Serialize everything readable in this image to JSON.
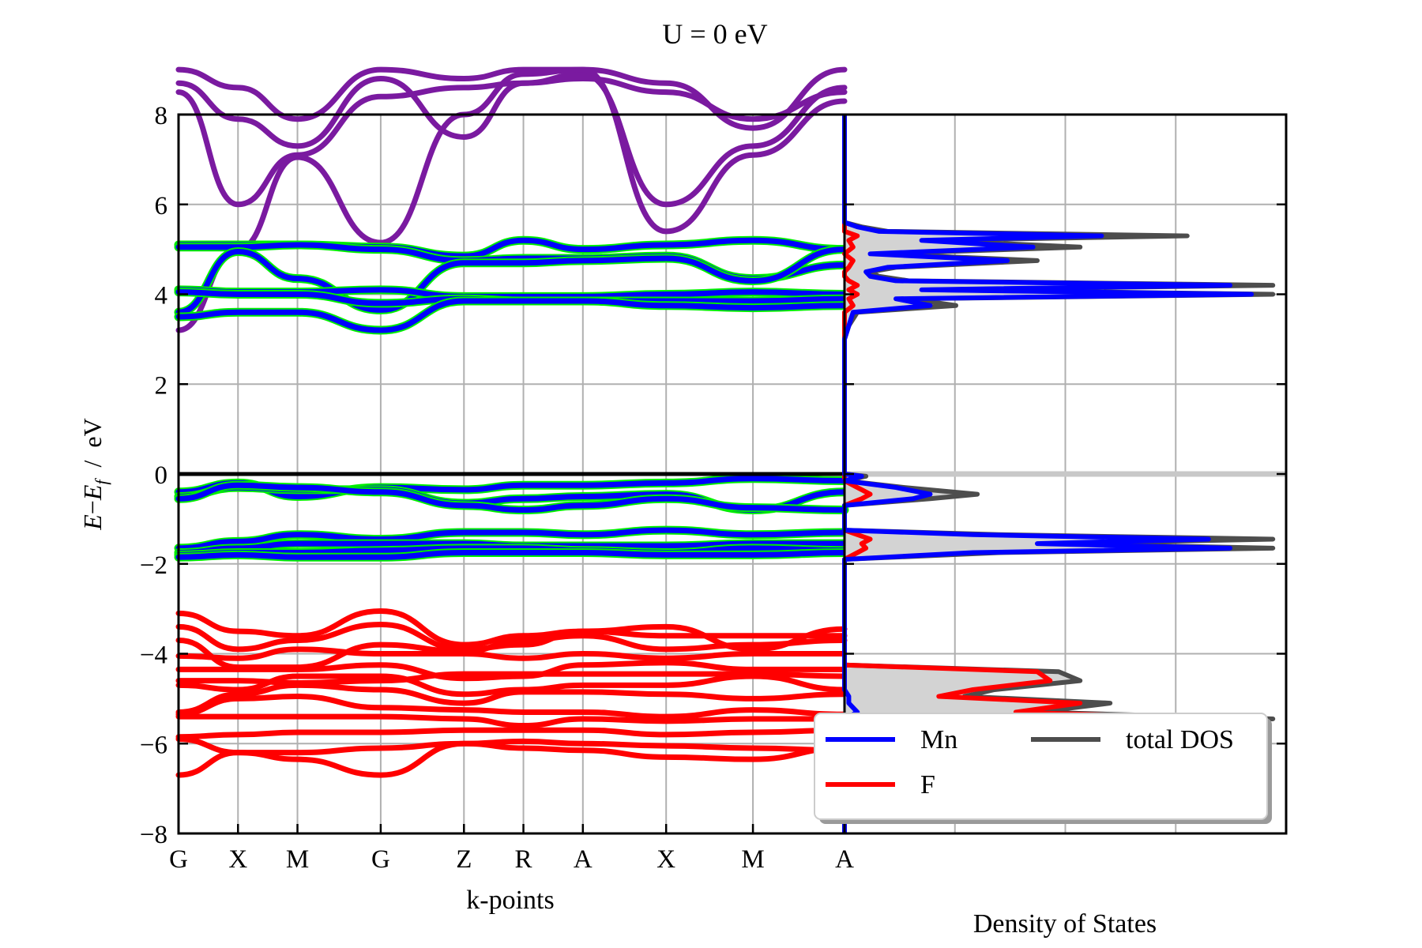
{
  "chart_data": {
    "type": "line",
    "title": "U = 0 eV",
    "ylabel_parts": [
      "E",
      "−",
      "E",
      "f",
      "  /  eV"
    ],
    "ylim": [
      -8,
      8
    ],
    "yticks": [
      8,
      6,
      4,
      2,
      0,
      -2,
      -4,
      -6,
      -8
    ],
    "ytick_labels": [
      "8",
      "6",
      "4",
      "2",
      "0",
      "−2",
      "−4",
      "−6",
      "−8"
    ],
    "band_xlabel": "k-points",
    "dos_xlabel": "Density of States",
    "kpoints": [
      {
        "label": "G",
        "pos": 0.0
      },
      {
        "label": "X",
        "pos": 0.5
      },
      {
        "label": "M",
        "pos": 1.0
      },
      {
        "label": "G",
        "pos": 1.7
      },
      {
        "label": "Z",
        "pos": 2.4
      },
      {
        "label": "R",
        "pos": 2.9
      },
      {
        "label": "A",
        "pos": 3.4
      },
      {
        "label": "X",
        "pos": 4.1
      },
      {
        "label": "M",
        "pos": 4.83
      },
      {
        "label": "A",
        "pos": 5.6
      }
    ],
    "fermi_level": 0,
    "colors": {
      "Mn": "#0000ff",
      "F": "#ff0000",
      "total": "#4d4d4d",
      "mix": "#00ee00",
      "upper": "#7a1aa0"
    },
    "bands": [
      {
        "group": "upper",
        "y": [
          8.5,
          6.0,
          7.1,
          8.4,
          8.6,
          8.7,
          8.8,
          8.5,
          7.9,
          8.5
        ]
      },
      {
        "group": "upper",
        "y": [
          8.7,
          7.9,
          7.3,
          8.8,
          7.5,
          8.7,
          8.9,
          6.0,
          7.3,
          8.6
        ]
      },
      {
        "group": "upper",
        "y": [
          9.0,
          8.6,
          7.9,
          9.0,
          8.8,
          9.0,
          9.0,
          5.4,
          7.1,
          8.3
        ]
      },
      {
        "group": "upper",
        "y": [
          3.2,
          5.0,
          7.05,
          5.15,
          8.0,
          8.9,
          9.0,
          8.7,
          7.7,
          9.0
        ]
      },
      {
        "group": "Mn",
        "y": [
          5.1,
          5.1,
          5.1,
          5.05,
          4.85,
          5.2,
          5.0,
          5.1,
          5.2,
          5.0
        ]
      },
      {
        "group": "Mn",
        "y": [
          5.05,
          5.05,
          5.1,
          5.0,
          4.75,
          4.8,
          4.8,
          4.85,
          4.35,
          4.65
        ]
      },
      {
        "group": "Mn",
        "y": [
          3.6,
          4.95,
          4.35,
          3.65,
          4.7,
          4.7,
          4.75,
          4.8,
          4.3,
          5.0
        ]
      },
      {
        "group": "Mn",
        "y": [
          4.1,
          4.05,
          4.05,
          4.1,
          3.95,
          3.95,
          3.95,
          4.0,
          4.05,
          4.0
        ]
      },
      {
        "group": "Mn",
        "y": [
          4.05,
          4.0,
          4.0,
          3.8,
          3.9,
          3.85,
          3.85,
          3.85,
          3.85,
          3.9
        ]
      },
      {
        "group": "Mn",
        "y": [
          3.5,
          3.6,
          3.6,
          3.2,
          3.85,
          3.85,
          3.85,
          3.75,
          3.7,
          3.75
        ]
      },
      {
        "group": "Mn",
        "y": [
          -0.4,
          -0.2,
          -0.5,
          -0.3,
          -0.35,
          -0.25,
          -0.25,
          -0.2,
          -0.1,
          -0.15
        ]
      },
      {
        "group": "Mn",
        "y": [
          -0.5,
          -0.3,
          -0.35,
          -0.35,
          -0.65,
          -0.55,
          -0.5,
          -0.45,
          -0.8,
          -0.4
        ]
      },
      {
        "group": "Mn",
        "y": [
          -0.55,
          -0.25,
          -0.3,
          -0.4,
          -0.7,
          -0.8,
          -0.7,
          -0.55,
          -0.75,
          -0.8
        ]
      },
      {
        "group": "Mn",
        "y": [
          -1.65,
          -1.5,
          -1.35,
          -1.45,
          -1.3,
          -1.3,
          -1.35,
          -1.25,
          -1.35,
          -1.3
        ]
      },
      {
        "group": "Mn",
        "y": [
          -1.75,
          -1.65,
          -1.55,
          -1.55,
          -1.55,
          -1.6,
          -1.6,
          -1.6,
          -1.55,
          -1.55
        ]
      },
      {
        "group": "Mn",
        "y": [
          -1.8,
          -1.75,
          -1.75,
          -1.7,
          -1.65,
          -1.65,
          -1.7,
          -1.75,
          -1.65,
          -1.7
        ]
      },
      {
        "group": "Mn",
        "y": [
          -1.85,
          -1.8,
          -1.85,
          -1.85,
          -1.75,
          -1.75,
          -1.75,
          -1.8,
          -1.8,
          -1.75
        ]
      },
      {
        "group": "F",
        "y": [
          -3.1,
          -3.5,
          -3.6,
          -3.05,
          -3.8,
          -3.6,
          -3.5,
          -3.4,
          -3.9,
          -3.45
        ]
      },
      {
        "group": "F",
        "y": [
          -3.4,
          -3.9,
          -3.7,
          -3.35,
          -3.9,
          -3.8,
          -3.5,
          -3.6,
          -3.6,
          -3.6
        ]
      },
      {
        "group": "F",
        "y": [
          -3.7,
          -4.3,
          -4.3,
          -3.8,
          -3.95,
          -3.7,
          -3.6,
          -3.9,
          -3.8,
          -3.7
        ]
      },
      {
        "group": "F",
        "y": [
          -4.05,
          -4.1,
          -3.9,
          -4.0,
          -4.0,
          -4.1,
          -4.0,
          -4.1,
          -4.0,
          -4.0
        ]
      },
      {
        "group": "F",
        "y": [
          -4.35,
          -4.35,
          -4.35,
          -4.25,
          -4.55,
          -4.5,
          -4.25,
          -4.2,
          -4.35,
          -4.35
        ]
      },
      {
        "group": "F",
        "y": [
          -4.6,
          -4.6,
          -4.65,
          -4.6,
          -4.45,
          -4.45,
          -4.45,
          -4.45,
          -4.45,
          -4.5
        ]
      },
      {
        "group": "F",
        "y": [
          -4.7,
          -4.8,
          -4.5,
          -4.5,
          -4.9,
          -4.8,
          -4.7,
          -4.7,
          -4.5,
          -4.8
        ]
      },
      {
        "group": "F",
        "y": [
          -5.3,
          -4.9,
          -4.7,
          -4.8,
          -5.1,
          -4.85,
          -4.85,
          -4.9,
          -5.0,
          -4.9
        ]
      },
      {
        "group": "F",
        "y": [
          -5.35,
          -5.0,
          -4.95,
          -5.2,
          -5.25,
          -5.3,
          -5.3,
          -5.4,
          -5.25,
          -5.35
        ]
      },
      {
        "group": "F",
        "y": [
          -5.4,
          -5.4,
          -5.4,
          -5.4,
          -5.45,
          -5.6,
          -5.45,
          -5.5,
          -5.45,
          -5.45
        ]
      },
      {
        "group": "F",
        "y": [
          -5.85,
          -5.8,
          -5.75,
          -5.75,
          -5.7,
          -5.7,
          -5.7,
          -5.8,
          -5.75,
          -5.7
        ]
      },
      {
        "group": "F",
        "y": [
          -5.9,
          -6.2,
          -6.2,
          -6.1,
          -6.0,
          -5.95,
          -6.0,
          -6.05,
          -6.1,
          -6.15
        ]
      },
      {
        "group": "F",
        "y": [
          -6.7,
          -6.2,
          -6.35,
          -6.7,
          -6.0,
          -6.1,
          -6.15,
          -6.3,
          -6.35,
          -6.1
        ]
      }
    ],
    "dos": {
      "energy": [
        -8.0,
        -6.0,
        -5.6,
        -5.45,
        -5.3,
        -5.1,
        -4.95,
        -4.8,
        -4.6,
        -4.4,
        -4.25,
        -4.1,
        -3.9,
        -3.7,
        -2.5,
        -1.9,
        -1.75,
        -1.65,
        -1.55,
        -1.45,
        -1.35,
        -1.25,
        -1.1,
        -0.9,
        -0.7,
        -0.55,
        -0.45,
        -0.3,
        -0.15,
        -0.05,
        0.0,
        0.05,
        1.0,
        2.0,
        3.0,
        3.3,
        3.6,
        3.75,
        3.9,
        4.0,
        4.1,
        4.2,
        4.3,
        4.4,
        4.5,
        4.6,
        4.75,
        4.9,
        5.05,
        5.2,
        5.3,
        5.4,
        5.5,
        5.6,
        5.75,
        8.0
      ],
      "total": [
        0.0,
        0.0,
        0.4,
        1.0,
        0.45,
        0.62,
        0.28,
        0.35,
        0.55,
        0.5,
        0.0,
        0.0,
        0.0,
        0.0,
        0.0,
        0.0,
        0.36,
        1.0,
        0.48,
        1.0,
        0.36,
        0.0,
        0.0,
        0.0,
        0.0,
        0.2,
        0.31,
        0.14,
        0.0,
        0.05,
        0.0,
        0.0,
        0.0,
        0.0,
        0.0,
        0.01,
        0.03,
        0.26,
        0.15,
        1.0,
        0.2,
        1.0,
        0.15,
        0.08,
        0.06,
        0.12,
        0.45,
        0.08,
        0.55,
        0.2,
        0.8,
        0.1,
        0.04,
        0.0,
        0.0,
        0.0
      ],
      "Mn": [
        0.0,
        0.0,
        0.0,
        0.0,
        0.03,
        0.01,
        0.01,
        0.0,
        0.0,
        0.0,
        0.0,
        0.0,
        0.0,
        0.0,
        0.0,
        0.0,
        0.3,
        0.9,
        0.45,
        0.85,
        0.3,
        0.0,
        0.0,
        0.0,
        0.0,
        0.16,
        0.2,
        0.12,
        0.0,
        0.04,
        0.0,
        0.0,
        0.0,
        0.0,
        0.0,
        0.01,
        0.02,
        0.2,
        0.12,
        0.95,
        0.18,
        0.9,
        0.12,
        0.06,
        0.05,
        0.1,
        0.38,
        0.06,
        0.44,
        0.18,
        0.6,
        0.08,
        0.03,
        0.0,
        0.0,
        0.0
      ],
      "F": [
        0.0,
        0.0,
        0.35,
        0.9,
        0.4,
        0.55,
        0.22,
        0.3,
        0.48,
        0.45,
        0.0,
        0.0,
        0.0,
        0.0,
        0.0,
        0.0,
        0.03,
        0.05,
        0.04,
        0.06,
        0.03,
        0.0,
        0.0,
        0.0,
        0.0,
        0.04,
        0.06,
        0.03,
        0.0,
        0.0,
        0.0,
        0.0,
        0.0,
        0.0,
        0.0,
        0.0,
        0.0,
        0.02,
        0.01,
        0.03,
        0.01,
        0.03,
        0.01,
        0.0,
        0.0,
        0.01,
        0.02,
        0.0,
        0.02,
        0.01,
        0.03,
        0.0,
        0.0,
        0.0,
        0.0,
        0.0
      ]
    },
    "legend": {
      "position": "lower-right",
      "entries": [
        {
          "label": "Mn",
          "color": "#0000ff"
        },
        {
          "label": "total DOS",
          "color": "#4d4d4d"
        },
        {
          "label": "F",
          "color": "#ff0000"
        }
      ]
    },
    "grid": true
  }
}
